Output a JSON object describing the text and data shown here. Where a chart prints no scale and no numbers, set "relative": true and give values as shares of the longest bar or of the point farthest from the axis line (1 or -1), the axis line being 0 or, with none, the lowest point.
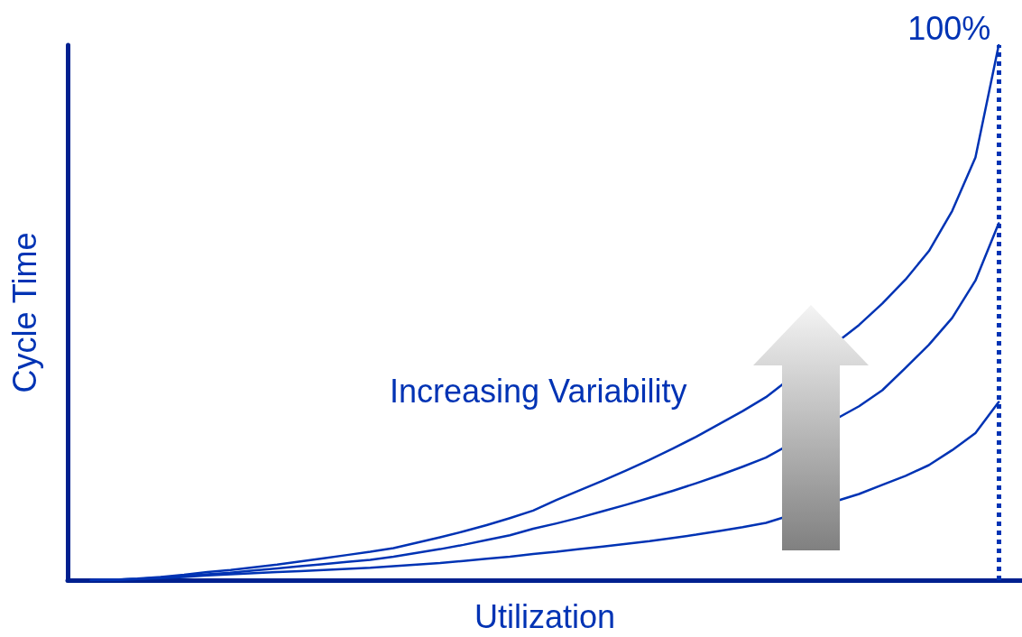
{
  "chart_data": {
    "type": "line",
    "relative": true,
    "xlabel": "Utilization",
    "ylabel": "Cycle Time",
    "categories": [
      null,
      null,
      null,
      null,
      null,
      null,
      null,
      null,
      null,
      null,
      null,
      null,
      null,
      null,
      null,
      null,
      null,
      null,
      null,
      null,
      null,
      null,
      null,
      null,
      null,
      null,
      null,
      null,
      null,
      null,
      null,
      null,
      null,
      null,
      null,
      null,
      null,
      null,
      null,
      null,
      null,
      null
    ],
    "tick_labels": false,
    "grid": false,
    "marker": "none",
    "annotations": [
      "Increasing Variability"
    ],
    "ref_lines": [
      {
        "axis": "x",
        "label": "100%",
        "color": "#0033b4",
        "line_style": "dotted"
      }
    ],
    "series": [
      {
        "color": "#0033b4",
        "values": [
          null,
          0,
          0.001,
          0.003,
          0.006,
          0.01,
          0.015,
          0.019,
          0.024,
          0.029,
          0.035,
          0.041,
          0.047,
          0.053,
          0.06,
          0.07,
          0.08,
          0.091,
          0.103,
          0.116,
          0.13,
          0.15,
          0.168,
          0.186,
          0.205,
          0.225,
          0.246,
          0.268,
          0.292,
          0.316,
          0.342,
          null,
          null,
          null,
          0.477,
          0.517,
          0.562,
          0.615,
          0.69,
          0.79,
          1,
          null
        ]
      },
      {
        "color": "#0033b4",
        "values": [
          null,
          0,
          0.001,
          0.002,
          0.005,
          0.008,
          0.011,
          0.014,
          0.018,
          0.022,
          0.026,
          0.03,
          0.034,
          0.038,
          0.044,
          0.051,
          0.058,
          0.066,
          0.075,
          0.084,
          0.096,
          0.106,
          0.117,
          0.129,
          0.141,
          0.154,
          0.167,
          0.181,
          0.196,
          0.212,
          0.229,
          null,
          null,
          null,
          0.325,
          0.355,
          0.397,
          0.44,
          0.49,
          0.56,
          0.667,
          null
        ]
      },
      {
        "color": "#0033b4",
        "values": [
          null,
          0,
          0.001,
          0.002,
          0.004,
          0.006,
          0.009,
          0.011,
          0.013,
          0.015,
          0.017,
          0.019,
          0.021,
          0.023,
          0.026,
          0.029,
          0.032,
          0.036,
          0.04,
          0.044,
          0.049,
          0.053,
          0.058,
          0.063,
          0.068,
          0.073,
          0.079,
          0.085,
          0.092,
          0.099,
          0.107,
          null,
          null,
          null,
          0.161,
          0.178,
          0.195,
          0.215,
          0.243,
          0.275,
          0.333,
          null
        ]
      }
    ]
  }
}
